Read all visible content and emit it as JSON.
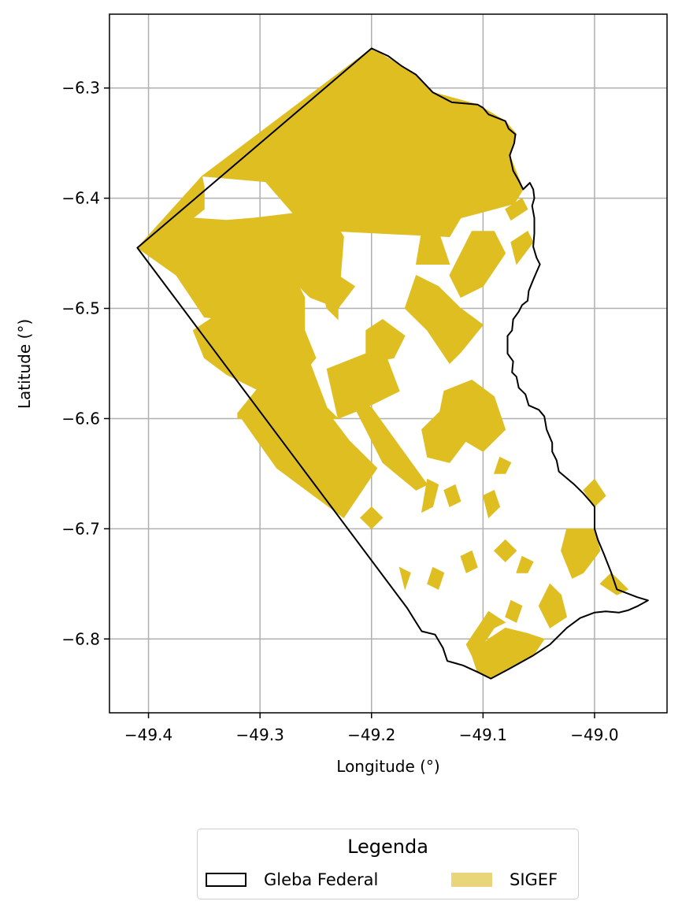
{
  "map": {
    "xlabel": "Longitude (°)",
    "ylabel": "Latitude (°)",
    "xlim": [
      -49.435,
      -48.935
    ],
    "ylim": [
      -6.867,
      -6.233
    ],
    "x_ticks": [
      {
        "value": -49.4,
        "label": "−49.4"
      },
      {
        "value": -49.3,
        "label": "−49.3"
      },
      {
        "value": -49.2,
        "label": "−49.2"
      },
      {
        "value": -49.1,
        "label": "−49.1"
      },
      {
        "value": -49.0,
        "label": "−49.0"
      }
    ],
    "y_ticks": [
      {
        "value": -6.3,
        "label": "−6.3"
      },
      {
        "value": -6.4,
        "label": "−6.4"
      },
      {
        "value": -6.5,
        "label": "−6.5"
      },
      {
        "value": -6.6,
        "label": "−6.6"
      },
      {
        "value": -6.7,
        "label": "−6.7"
      },
      {
        "value": -6.8,
        "label": "−6.8"
      }
    ],
    "grid": true,
    "colors": {
      "sigef": "#dfbe22",
      "sigef_legend": "#ead67a",
      "boundary": "#000000",
      "grid": "#b0b0b0"
    },
    "layers": {
      "gleba_boundary": [
        [
          -49.2,
          -6.264
        ],
        [
          -49.185,
          -6.271
        ],
        [
          -49.173,
          -6.28
        ],
        [
          -49.16,
          -6.288
        ],
        [
          -49.145,
          -6.304
        ],
        [
          -49.128,
          -6.313
        ],
        [
          -49.105,
          -6.315
        ],
        [
          -49.1,
          -6.318
        ],
        [
          -49.095,
          -6.324
        ],
        [
          -49.08,
          -6.33
        ],
        [
          -49.077,
          -6.337
        ],
        [
          -49.071,
          -6.342
        ],
        [
          -49.072,
          -6.35
        ],
        [
          -49.076,
          -6.361
        ],
        [
          -49.073,
          -6.375
        ],
        [
          -49.068,
          -6.384
        ],
        [
          -49.064,
          -6.392
        ],
        [
          -49.058,
          -6.386
        ],
        [
          -49.055,
          -6.392
        ],
        [
          -49.054,
          -6.4
        ],
        [
          -49.056,
          -6.407
        ],
        [
          -49.054,
          -6.418
        ],
        [
          -49.054,
          -6.432
        ],
        [
          -49.055,
          -6.444
        ],
        [
          -49.052,
          -6.454
        ],
        [
          -49.049,
          -6.46
        ],
        [
          -49.052,
          -6.467
        ],
        [
          -49.055,
          -6.474
        ],
        [
          -49.059,
          -6.484
        ],
        [
          -49.06,
          -6.493
        ],
        [
          -49.065,
          -6.497
        ],
        [
          -49.068,
          -6.503
        ],
        [
          -49.073,
          -6.51
        ],
        [
          -49.074,
          -6.52
        ],
        [
          -49.078,
          -6.525
        ],
        [
          -49.078,
          -6.541
        ],
        [
          -49.073,
          -6.548
        ],
        [
          -49.074,
          -6.558
        ],
        [
          -49.07,
          -6.562
        ],
        [
          -49.068,
          -6.572
        ],
        [
          -49.062,
          -6.578
        ],
        [
          -49.059,
          -6.588
        ],
        [
          -49.05,
          -6.592
        ],
        [
          -49.045,
          -6.598
        ],
        [
          -49.043,
          -6.61
        ],
        [
          -49.038,
          -6.622
        ],
        [
          -49.038,
          -6.63
        ],
        [
          -49.034,
          -6.638
        ],
        [
          -49.032,
          -6.648
        ],
        [
          -49.018,
          -6.66
        ],
        [
          -49.01,
          -6.668
        ],
        [
          -49.004,
          -6.675
        ],
        [
          -49.0,
          -6.68
        ],
        [
          -49.0,
          -6.7
        ],
        [
          -48.997,
          -6.71
        ],
        [
          -48.992,
          -6.722
        ],
        [
          -48.985,
          -6.74
        ],
        [
          -48.98,
          -6.755
        ],
        [
          -48.962,
          -6.762
        ],
        [
          -48.952,
          -6.765
        ],
        [
          -48.961,
          -6.77
        ],
        [
          -48.97,
          -6.774
        ],
        [
          -48.978,
          -6.776
        ],
        [
          -48.99,
          -6.775
        ],
        [
          -49.0,
          -6.776
        ],
        [
          -49.013,
          -6.781
        ],
        [
          -49.025,
          -6.79
        ],
        [
          -49.04,
          -6.805
        ],
        [
          -49.055,
          -6.815
        ],
        [
          -49.078,
          -6.828
        ],
        [
          -49.093,
          -6.836
        ],
        [
          -49.105,
          -6.83
        ],
        [
          -49.118,
          -6.824
        ],
        [
          -49.125,
          -6.822
        ],
        [
          -49.132,
          -6.82
        ],
        [
          -49.136,
          -6.808
        ],
        [
          -49.143,
          -6.796
        ],
        [
          -49.155,
          -6.793
        ],
        [
          -49.16,
          -6.785
        ],
        [
          -49.168,
          -6.772
        ],
        [
          -49.41,
          -6.445
        ]
      ],
      "sigef_parcels": [
        [
          [
            -49.2,
            -6.264
          ],
          [
            -49.16,
            -6.288
          ],
          [
            -49.145,
            -6.304
          ],
          [
            -49.105,
            -6.315
          ],
          [
            -49.08,
            -6.33
          ],
          [
            -49.07,
            -6.342
          ],
          [
            -49.076,
            -6.361
          ],
          [
            -49.064,
            -6.392
          ],
          [
            -49.072,
            -6.405
          ],
          [
            -49.12,
            -6.418
          ],
          [
            -49.13,
            -6.435
          ],
          [
            -49.23,
            -6.43
          ],
          [
            -49.265,
            -6.42
          ],
          [
            -49.295,
            -6.385
          ],
          [
            -49.352,
            -6.38
          ]
        ],
        [
          [
            -49.41,
            -6.445
          ],
          [
            -49.352,
            -6.38
          ],
          [
            -49.35,
            -6.39
          ],
          [
            -49.35,
            -6.41
          ],
          [
            -49.36,
            -6.418
          ],
          [
            -49.33,
            -6.42
          ],
          [
            -49.305,
            -6.418
          ],
          [
            -49.272,
            -6.44
          ],
          [
            -49.27,
            -6.455
          ],
          [
            -49.265,
            -6.48
          ],
          [
            -49.26,
            -6.49
          ],
          [
            -49.26,
            -6.52
          ],
          [
            -49.25,
            -6.545
          ],
          [
            -49.28,
            -6.57
          ],
          [
            -49.305,
            -6.565
          ],
          [
            -49.32,
            -6.555
          ],
          [
            -49.33,
            -6.53
          ],
          [
            -49.33,
            -6.51
          ],
          [
            -49.35,
            -6.508
          ],
          [
            -49.365,
            -6.485
          ],
          [
            -49.375,
            -6.47
          ]
        ],
        [
          [
            -49.305,
            -6.418
          ],
          [
            -49.24,
            -6.41
          ],
          [
            -49.225,
            -6.435
          ],
          [
            -49.23,
            -6.5
          ],
          [
            -49.255,
            -6.49
          ],
          [
            -49.265,
            -6.48
          ]
        ],
        [
          [
            -49.36,
            -6.52
          ],
          [
            -49.35,
            -6.545
          ],
          [
            -49.33,
            -6.56
          ],
          [
            -49.3,
            -6.575
          ],
          [
            -49.27,
            -6.57
          ],
          [
            -49.25,
            -6.545
          ],
          [
            -49.26,
            -6.52
          ],
          [
            -49.3,
            -6.51
          ],
          [
            -49.33,
            -6.5
          ]
        ],
        [
          [
            -49.32,
            -6.595
          ],
          [
            -49.3,
            -6.57
          ],
          [
            -49.27,
            -6.57
          ],
          [
            -49.255,
            -6.55
          ],
          [
            -49.24,
            -6.59
          ],
          [
            -49.23,
            -6.6
          ],
          [
            -49.32,
            -6.6
          ]
        ],
        [
          [
            -49.32,
            -6.595
          ],
          [
            -49.235,
            -6.6
          ],
          [
            -49.22,
            -6.62
          ],
          [
            -49.195,
            -6.645
          ],
          [
            -49.225,
            -6.69
          ],
          [
            -49.285,
            -6.645
          ]
        ],
        [
          [
            -49.22,
            -6.58
          ],
          [
            -49.2,
            -6.62
          ],
          [
            -49.19,
            -6.64
          ],
          [
            -49.16,
            -6.665
          ],
          [
            -49.15,
            -6.66
          ],
          [
            -49.2,
            -6.59
          ],
          [
            -49.23,
            -6.575
          ]
        ],
        [
          [
            -49.24,
            -6.555
          ],
          [
            -49.215,
            -6.545
          ],
          [
            -49.19,
            -6.535
          ],
          [
            -49.175,
            -6.575
          ],
          [
            -49.205,
            -6.59
          ],
          [
            -49.23,
            -6.6
          ]
        ],
        [
          [
            -49.23,
            -6.5
          ],
          [
            -49.215,
            -6.48
          ],
          [
            -49.23,
            -6.47
          ],
          [
            -49.245,
            -6.48
          ],
          [
            -49.24,
            -6.5
          ],
          [
            -49.23,
            -6.51
          ]
        ],
        [
          [
            -49.205,
            -6.52
          ],
          [
            -49.19,
            -6.51
          ],
          [
            -49.17,
            -6.525
          ],
          [
            -49.18,
            -6.545
          ],
          [
            -49.205,
            -6.55
          ]
        ],
        [
          [
            -49.12,
            -6.54
          ],
          [
            -49.1,
            -6.515
          ],
          [
            -49.12,
            -6.5
          ],
          [
            -49.14,
            -6.48
          ],
          [
            -49.16,
            -6.47
          ],
          [
            -49.17,
            -6.5
          ],
          [
            -49.15,
            -6.52
          ],
          [
            -49.13,
            -6.55
          ]
        ],
        [
          [
            -49.13,
            -6.47
          ],
          [
            -49.11,
            -6.43
          ],
          [
            -49.09,
            -6.43
          ],
          [
            -49.08,
            -6.45
          ],
          [
            -49.1,
            -6.48
          ],
          [
            -49.12,
            -6.49
          ]
        ],
        [
          [
            -49.13,
            -6.46
          ],
          [
            -49.14,
            -6.43
          ],
          [
            -49.155,
            -6.43
          ],
          [
            -49.16,
            -6.46
          ]
        ],
        [
          [
            -49.075,
            -6.44
          ],
          [
            -49.06,
            -6.43
          ],
          [
            -49.055,
            -6.44
          ],
          [
            -49.07,
            -6.46
          ]
        ],
        [
          [
            -49.08,
            -6.41
          ],
          [
            -49.065,
            -6.4
          ],
          [
            -49.06,
            -6.41
          ],
          [
            -49.075,
            -6.42
          ]
        ],
        [
          [
            -49.1,
            -6.63
          ],
          [
            -49.08,
            -6.61
          ],
          [
            -49.09,
            -6.58
          ],
          [
            -49.11,
            -6.565
          ],
          [
            -49.135,
            -6.575
          ],
          [
            -49.14,
            -6.6
          ],
          [
            -49.125,
            -6.615
          ]
        ],
        [
          [
            -49.13,
            -6.64
          ],
          [
            -49.115,
            -6.62
          ],
          [
            -49.12,
            -6.6
          ],
          [
            -49.135,
            -6.59
          ],
          [
            -49.155,
            -6.61
          ],
          [
            -49.15,
            -6.635
          ]
        ],
        [
          [
            -49.01,
            -6.74
          ],
          [
            -48.995,
            -6.72
          ],
          [
            -49.0,
            -6.7
          ],
          [
            -49.025,
            -6.7
          ],
          [
            -49.03,
            -6.72
          ],
          [
            -49.02,
            -6.745
          ]
        ],
        [
          [
            -48.98,
            -6.76
          ],
          [
            -48.97,
            -6.755
          ],
          [
            -48.985,
            -6.74
          ],
          [
            -48.995,
            -6.75
          ]
        ],
        [
          [
            -49.04,
            -6.79
          ],
          [
            -49.025,
            -6.78
          ],
          [
            -49.03,
            -6.76
          ],
          [
            -49.04,
            -6.75
          ],
          [
            -49.05,
            -6.77
          ]
        ],
        [
          [
            -49.105,
            -6.83
          ],
          [
            -49.093,
            -6.836
          ],
          [
            -49.078,
            -6.828
          ],
          [
            -49.055,
            -6.815
          ],
          [
            -49.045,
            -6.8
          ],
          [
            -49.06,
            -6.795
          ],
          [
            -49.08,
            -6.79
          ],
          [
            -49.095,
            -6.8
          ],
          [
            -49.11,
            -6.815
          ]
        ],
        [
          [
            -49.11,
            -6.815
          ],
          [
            -49.1,
            -6.805
          ],
          [
            -49.09,
            -6.79
          ],
          [
            -49.08,
            -6.785
          ],
          [
            -49.095,
            -6.775
          ],
          [
            -49.105,
            -6.79
          ],
          [
            -49.115,
            -6.805
          ]
        ],
        [
          [
            -49.0,
            -6.68
          ],
          [
            -48.99,
            -6.67
          ],
          [
            -49.0,
            -6.655
          ],
          [
            -49.01,
            -6.665
          ]
        ],
        [
          [
            -49.07,
            -6.785
          ],
          [
            -49.065,
            -6.77
          ],
          [
            -49.075,
            -6.765
          ],
          [
            -49.08,
            -6.78
          ]
        ],
        [
          [
            -49.155,
            -6.685
          ],
          [
            -49.145,
            -6.68
          ],
          [
            -49.14,
            -6.66
          ],
          [
            -49.15,
            -6.655
          ]
        ],
        [
          [
            -49.14,
            -6.755
          ],
          [
            -49.135,
            -6.74
          ],
          [
            -49.145,
            -6.735
          ],
          [
            -49.15,
            -6.75
          ]
        ],
        [
          [
            -49.17,
            -6.755
          ],
          [
            -49.165,
            -6.74
          ],
          [
            -49.175,
            -6.735
          ]
        ],
        [
          [
            -49.13,
            -6.68
          ],
          [
            -49.12,
            -6.675
          ],
          [
            -49.125,
            -6.66
          ],
          [
            -49.135,
            -6.665
          ]
        ],
        [
          [
            -49.095,
            -6.69
          ],
          [
            -49.085,
            -6.68
          ],
          [
            -49.09,
            -6.665
          ],
          [
            -49.1,
            -6.67
          ]
        ],
        [
          [
            -49.06,
            -6.74
          ],
          [
            -49.055,
            -6.73
          ],
          [
            -49.065,
            -6.725
          ],
          [
            -49.07,
            -6.74
          ]
        ],
        [
          [
            -49.08,
            -6.73
          ],
          [
            -49.07,
            -6.72
          ],
          [
            -49.08,
            -6.71
          ],
          [
            -49.09,
            -6.72
          ]
        ],
        [
          [
            -49.115,
            -6.74
          ],
          [
            -49.105,
            -6.735
          ],
          [
            -49.11,
            -6.72
          ],
          [
            -49.12,
            -6.725
          ]
        ],
        [
          [
            -49.2,
            -6.7
          ],
          [
            -49.19,
            -6.69
          ],
          [
            -49.2,
            -6.68
          ],
          [
            -49.21,
            -6.69
          ]
        ],
        [
          [
            -49.08,
            -6.65
          ],
          [
            -49.075,
            -6.64
          ],
          [
            -49.085,
            -6.635
          ],
          [
            -49.09,
            -6.65
          ]
        ]
      ]
    }
  },
  "legend": {
    "title": "Legenda",
    "items": [
      {
        "label": "Gleba Federal",
        "swatch": "outline"
      },
      {
        "label": "SIGEF",
        "swatch": "fill"
      }
    ]
  }
}
